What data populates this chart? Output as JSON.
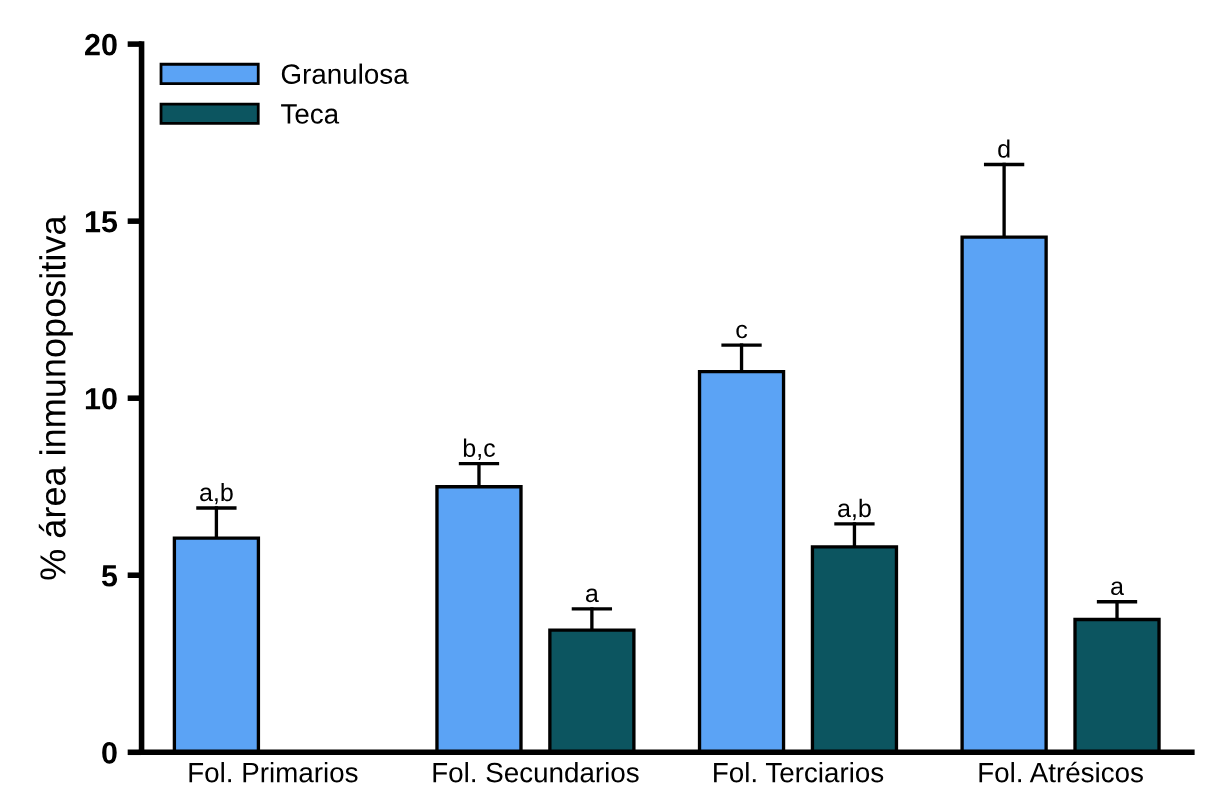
{
  "chart_data": {
    "type": "bar",
    "ylabel": "% área inmunopositiva",
    "categories": [
      "Fol. Primarios",
      "Fol. Secundarios",
      "Fol. Terciarios",
      "Fol. Atrésicos"
    ],
    "series": [
      {
        "name": "Granulosa",
        "color": "#5ba3f5",
        "values": [
          6.05,
          7.5,
          10.75,
          14.55
        ],
        "errors": [
          [
            6.05,
            6.9
          ],
          [
            7.5,
            8.15
          ],
          [
            10.75,
            11.5
          ],
          [
            14.55,
            16.6
          ]
        ],
        "value_labels": [
          "a,b",
          "b,c",
          "c",
          "d"
        ]
      },
      {
        "name": "Teca",
        "color": "#0c5560",
        "values": [
          null,
          3.45,
          5.8,
          3.75
        ],
        "errors": [
          null,
          [
            3.45,
            4.05
          ],
          [
            5.8,
            6.45
          ],
          [
            3.75,
            4.25
          ]
        ],
        "value_labels": [
          null,
          "a",
          "a,b",
          "a"
        ]
      }
    ],
    "ylim": [
      0,
      20
    ],
    "yticks": [
      0,
      5,
      10,
      15,
      20
    ],
    "grid": false,
    "legend": "top left"
  }
}
